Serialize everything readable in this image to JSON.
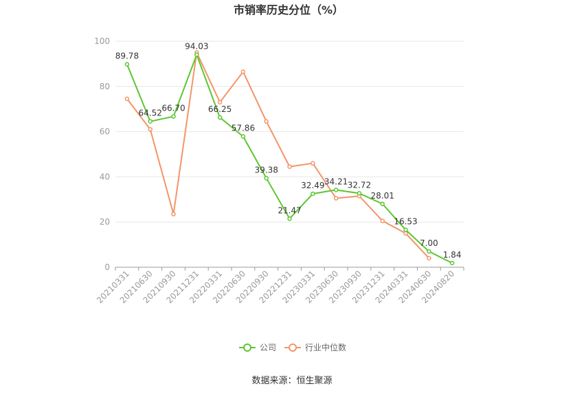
{
  "chart_data": {
    "type": "line",
    "title": "市销率历史分位（%）",
    "categories": [
      "20210331",
      "20210630",
      "20210930",
      "20211231",
      "20220331",
      "20220630",
      "20220930",
      "20221231",
      "20230331",
      "20230630",
      "20230930",
      "20231231",
      "20240331",
      "20240630",
      "20240820"
    ],
    "ylim": [
      0,
      100
    ],
    "yticks": [
      0,
      20,
      40,
      60,
      80,
      100
    ],
    "grid": true,
    "legend_position": "bottom",
    "series": [
      {
        "name": "公司",
        "color": "#5cc630",
        "values": [
          89.78,
          64.52,
          66.7,
          94.03,
          66.25,
          57.86,
          39.38,
          21.47,
          32.49,
          34.21,
          32.72,
          28.01,
          16.53,
          7.0,
          1.84
        ],
        "labels": [
          "89.78",
          "64.52",
          "66.70",
          "94.03",
          "66.25",
          "57.86",
          "39.38",
          "21.47",
          "32.49",
          "34.21",
          "32.72",
          "28.01",
          "16.53",
          "7.00",
          "1.84"
        ]
      },
      {
        "name": "行业中位数",
        "color": "#f39467",
        "values": [
          74.5,
          61,
          23.5,
          95,
          73,
          86.5,
          64.5,
          44.5,
          46,
          30.5,
          31.5,
          20.5,
          15,
          4,
          null
        ]
      }
    ],
    "source": "数据来源：恒生聚源"
  }
}
